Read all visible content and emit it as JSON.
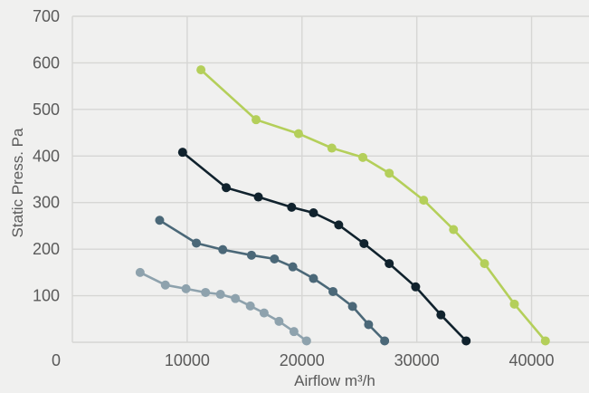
{
  "chart_data": {
    "type": "line",
    "title": "",
    "xlabel": "Airflow m³/h",
    "ylabel": "Static Press. Pa",
    "xlim": [
      0,
      45000
    ],
    "ylim": [
      0,
      700
    ],
    "x_ticks": [
      "0",
      "10000",
      "20000",
      "30000",
      "40000"
    ],
    "y_ticks": [
      "100",
      "200",
      "300",
      "400",
      "500",
      "600",
      "700"
    ],
    "grid": true,
    "legend": "none",
    "series": [
      {
        "color": "#b4cf5a",
        "x": [
          11200,
          16000,
          19700,
          22600,
          25300,
          27600,
          30600,
          33200,
          35900,
          38500,
          41200
        ],
        "y": [
          585,
          478,
          448,
          417,
          397,
          363,
          305,
          242,
          169,
          82,
          3
        ]
      },
      {
        "color": "#10222d",
        "x": [
          9600,
          13400,
          16200,
          19100,
          21000,
          23200,
          25400,
          27600,
          29900,
          32100,
          34300
        ],
        "y": [
          408,
          332,
          312,
          290,
          278,
          252,
          212,
          169,
          119,
          59,
          3
        ]
      },
      {
        "color": "#4b6878",
        "x": [
          7600,
          10800,
          13100,
          15600,
          17600,
          19200,
          21000,
          22700,
          24400,
          25800,
          27200
        ],
        "y": [
          262,
          213,
          199,
          187,
          179,
          162,
          137,
          109,
          77,
          38,
          3
        ]
      },
      {
        "color": "#8ea2ad",
        "x": [
          5900,
          8100,
          9900,
          11600,
          12900,
          14200,
          15500,
          16700,
          18000,
          19300,
          20400
        ],
        "y": [
          150,
          123,
          115,
          107,
          103,
          94,
          78,
          63,
          45,
          23,
          3
        ]
      }
    ]
  }
}
